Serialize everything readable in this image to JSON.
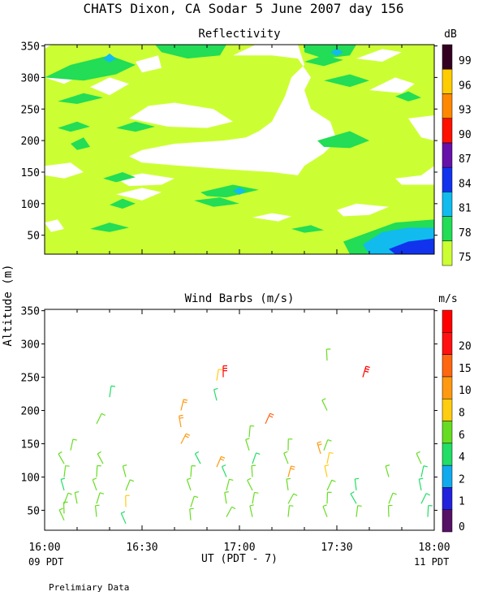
{
  "header": {
    "title": "CHATS Dixon, CA  Sodar    5 June 2007   day 156"
  },
  "axis": {
    "ylabel": "Altitude (m)",
    "xlabel": "UT  (PDT - 7)",
    "pdt_left": "09 PDT",
    "pdt_right": "11 PDT",
    "x_ticks": [
      "16:00",
      "16:30",
      "17:00",
      "17:30",
      "18:00"
    ],
    "y_ticks": [
      50,
      100,
      150,
      200,
      250,
      300,
      350
    ]
  },
  "footer": {
    "note": "Prelimiary Data"
  },
  "chart_data": [
    {
      "type": "heatmap",
      "title": "Reflectivity",
      "unit_label": "dB",
      "x_range_minutes": [
        0,
        120
      ],
      "y_range_m": [
        20,
        352
      ],
      "colorbar": {
        "levels": [
          75,
          78,
          81,
          84,
          87,
          90,
          93,
          96,
          99
        ],
        "colors": [
          "#ccff33",
          "#22dd55",
          "#11bbee",
          "#1133ee",
          "#6611aa",
          "#ff1100",
          "#ff8800",
          "#ffcc00",
          "#330022"
        ]
      },
      "regions": [
        {
          "level": 75,
          "note": "background 75-78 dB over most of the domain"
        },
        {
          "level": 78,
          "note": "patches near 100-330 m"
        },
        {
          "level": 81,
          "note": "small cores near 16:20 330 m, 17:00 120 m, 17:30 340 m, 17:55 60 m"
        },
        {
          "level": 84,
          "note": "lower-right corner near 17:50-18:00 below 60 m"
        }
      ]
    },
    {
      "type": "scatter",
      "title": "Wind Barbs (m/s)",
      "unit_label": "m/s",
      "x_range_minutes": [
        0,
        120
      ],
      "y_range_m": [
        20,
        352
      ],
      "colorbar": {
        "labels": [
          0,
          1,
          2,
          4,
          6,
          8,
          10,
          15,
          20
        ],
        "colors": [
          "#551166",
          "#2222dd",
          "#11aaee",
          "#22dd66",
          "#66dd22",
          "#ffcc11",
          "#ff9911",
          "#ff6611",
          "#ff1111",
          "#ff0000"
        ]
      },
      "barbs": [
        {
          "t": 6,
          "alt": 120,
          "speed": 4
        },
        {
          "t": 6,
          "alt": 100,
          "speed": 4
        },
        {
          "t": 6,
          "alt": 80,
          "speed": 2
        },
        {
          "t": 6,
          "alt": 60,
          "speed": 4
        },
        {
          "t": 6,
          "alt": 45,
          "speed": 4
        },
        {
          "t": 6,
          "alt": 35,
          "speed": 4
        },
        {
          "t": 8,
          "alt": 140,
          "speed": 4
        },
        {
          "t": 10,
          "alt": 60,
          "speed": 4
        },
        {
          "t": 16,
          "alt": 180,
          "speed": 4
        },
        {
          "t": 16,
          "alt": 100,
          "speed": 4
        },
        {
          "t": 16,
          "alt": 80,
          "speed": 4
        },
        {
          "t": 16,
          "alt": 60,
          "speed": 4
        },
        {
          "t": 16,
          "alt": 40,
          "speed": 4
        },
        {
          "t": 18,
          "alt": 120,
          "speed": 4
        },
        {
          "t": 20,
          "alt": 220,
          "speed": 2
        },
        {
          "t": 25,
          "alt": 100,
          "speed": 4
        },
        {
          "t": 25,
          "alt": 80,
          "speed": 4
        },
        {
          "t": 25,
          "alt": 55,
          "speed": 6
        },
        {
          "t": 25,
          "alt": 30,
          "speed": 2
        },
        {
          "t": 42,
          "alt": 200,
          "speed": 8
        },
        {
          "t": 42,
          "alt": 175,
          "speed": 8
        },
        {
          "t": 42,
          "alt": 150,
          "speed": 8
        },
        {
          "t": 45,
          "alt": 100,
          "speed": 4
        },
        {
          "t": 45,
          "alt": 80,
          "speed": 4
        },
        {
          "t": 45,
          "alt": 55,
          "speed": 4
        },
        {
          "t": 45,
          "alt": 35,
          "speed": 4
        },
        {
          "t": 48,
          "alt": 120,
          "speed": 2
        },
        {
          "t": 53,
          "alt": 245,
          "speed": 6
        },
        {
          "t": 53,
          "alt": 215,
          "speed": 2
        },
        {
          "t": 53,
          "alt": 115,
          "speed": 8
        },
        {
          "t": 55,
          "alt": 250,
          "speed": 20
        },
        {
          "t": 56,
          "alt": 100,
          "speed": 2
        },
        {
          "t": 56,
          "alt": 80,
          "speed": 4
        },
        {
          "t": 56,
          "alt": 60,
          "speed": 4
        },
        {
          "t": 56,
          "alt": 40,
          "speed": 4
        },
        {
          "t": 63,
          "alt": 160,
          "speed": 4
        },
        {
          "t": 63,
          "alt": 140,
          "speed": 4
        },
        {
          "t": 64,
          "alt": 120,
          "speed": 2
        },
        {
          "t": 64,
          "alt": 100,
          "speed": 4
        },
        {
          "t": 64,
          "alt": 80,
          "speed": 4
        },
        {
          "t": 64,
          "alt": 60,
          "speed": 4
        },
        {
          "t": 64,
          "alt": 40,
          "speed": 4
        },
        {
          "t": 68,
          "alt": 180,
          "speed": 10
        },
        {
          "t": 75,
          "alt": 140,
          "speed": 4
        },
        {
          "t": 75,
          "alt": 120,
          "speed": 4
        },
        {
          "t": 75,
          "alt": 100,
          "speed": 8
        },
        {
          "t": 75,
          "alt": 80,
          "speed": 4
        },
        {
          "t": 75,
          "alt": 60,
          "speed": 4
        },
        {
          "t": 75,
          "alt": 40,
          "speed": 4
        },
        {
          "t": 85,
          "alt": 135,
          "speed": 8
        },
        {
          "t": 86,
          "alt": 140,
          "speed": 4
        },
        {
          "t": 87,
          "alt": 275,
          "speed": 4
        },
        {
          "t": 87,
          "alt": 200,
          "speed": 4
        },
        {
          "t": 87,
          "alt": 120,
          "speed": 6
        },
        {
          "t": 87,
          "alt": 100,
          "speed": 6
        },
        {
          "t": 87,
          "alt": 80,
          "speed": 4
        },
        {
          "t": 87,
          "alt": 60,
          "speed": 4
        },
        {
          "t": 87,
          "alt": 40,
          "speed": 4
        },
        {
          "t": 98,
          "alt": 250,
          "speed": 20
        },
        {
          "t": 96,
          "alt": 80,
          "speed": 2
        },
        {
          "t": 96,
          "alt": 60,
          "speed": 2
        },
        {
          "t": 96,
          "alt": 40,
          "speed": 4
        },
        {
          "t": 106,
          "alt": 100,
          "speed": 4
        },
        {
          "t": 106,
          "alt": 60,
          "speed": 4
        },
        {
          "t": 106,
          "alt": 40,
          "speed": 4
        },
        {
          "t": 116,
          "alt": 120,
          "speed": 4
        },
        {
          "t": 116,
          "alt": 100,
          "speed": 2
        },
        {
          "t": 116,
          "alt": 80,
          "speed": 2
        },
        {
          "t": 116,
          "alt": 60,
          "speed": 2
        },
        {
          "t": 118,
          "alt": 40,
          "speed": 2
        }
      ]
    }
  ]
}
